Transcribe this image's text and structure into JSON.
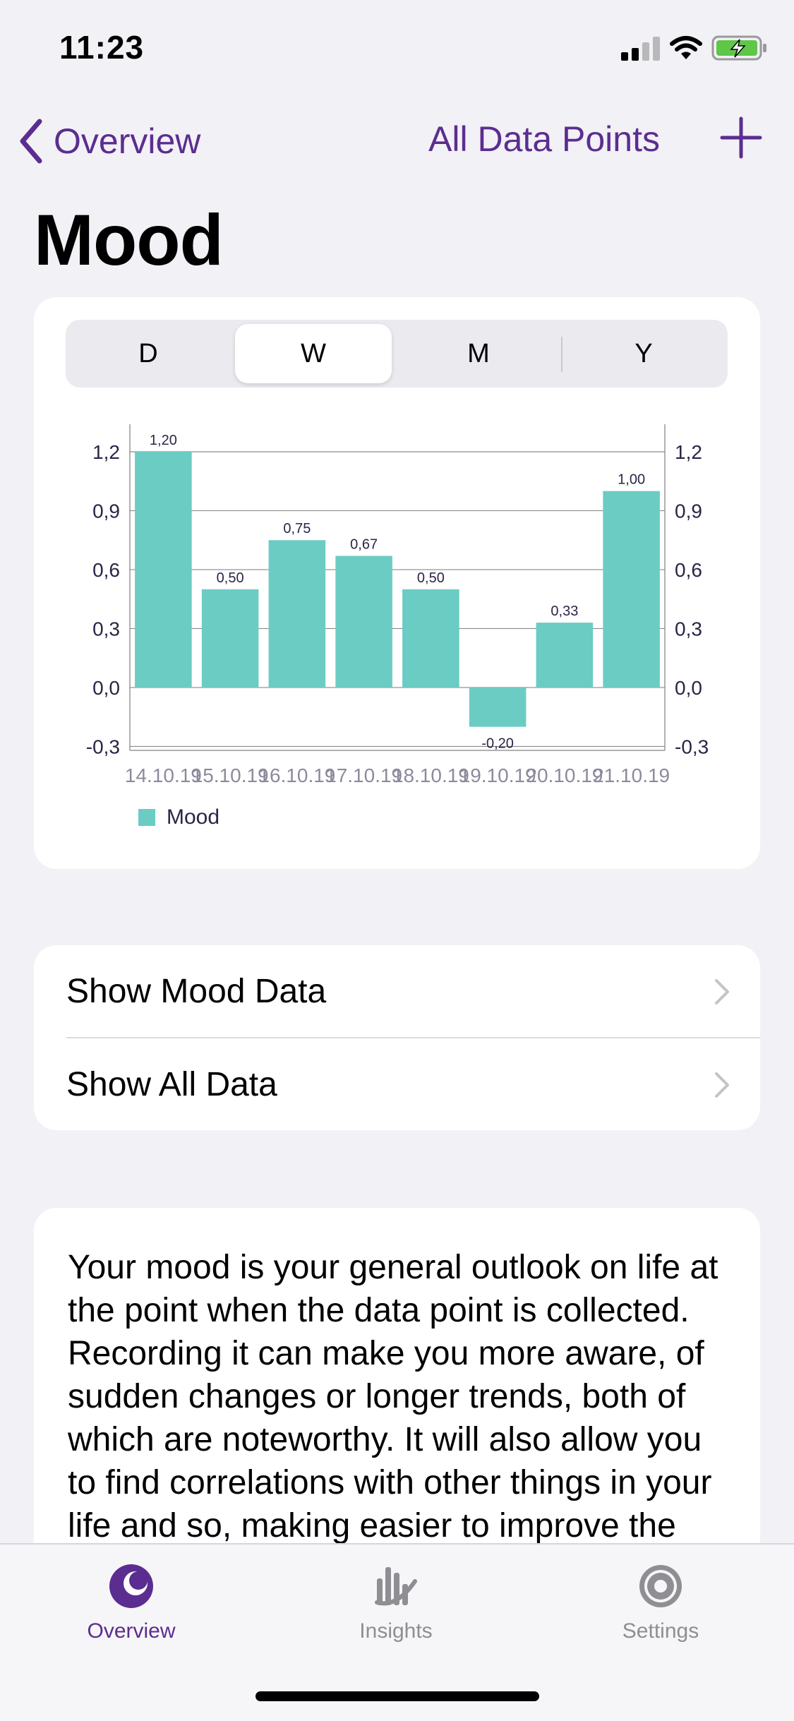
{
  "status_bar": {
    "time": "11:23"
  },
  "nav": {
    "back_label": "Overview",
    "right_label": "All Data Points",
    "add_icon": "plus-icon"
  },
  "page": {
    "title": "Mood"
  },
  "segments": {
    "items": [
      "D",
      "W",
      "M",
      "Y"
    ],
    "selected": "W"
  },
  "chart_data": {
    "type": "bar",
    "categories": [
      "14.10.19",
      "15.10.19",
      "16.10.19",
      "17.10.19",
      "18.10.19",
      "19.10.19",
      "20.10.19",
      "21.10.19"
    ],
    "series": [
      {
        "name": "Mood",
        "values": [
          1.2,
          0.5,
          0.75,
          0.67,
          0.5,
          -0.2,
          0.33,
          1.0
        ]
      }
    ],
    "value_labels": [
      "1,20",
      "0,50",
      "0,75",
      "0,67",
      "0,50",
      "-0,20",
      "0,33",
      "1,00"
    ],
    "yticks": [
      -0.3,
      0.0,
      0.3,
      0.6,
      0.9,
      1.2
    ],
    "ytick_labels": [
      "-0,3",
      "0,0",
      "0,3",
      "0,6",
      "0,9",
      "1,2"
    ],
    "ylim": [
      -0.32,
      1.34
    ],
    "dual_y_axis": true,
    "grid": true,
    "legend": "bottom-left",
    "colors": {
      "bar": "#6bccc3"
    }
  },
  "links": [
    {
      "label": "Show Mood Data"
    },
    {
      "label": "Show All Data"
    }
  ],
  "description": {
    "text": "Your mood is your general outlook on life at the point when the data point is collected. Recording it can make you more aware, of sudden changes or longer trends, both of which are noteworthy. It will also allow you to find correlations with other things in your life and so, making easier to improve the"
  },
  "tabbar": {
    "items": [
      {
        "label": "Overview",
        "icon": "overview-icon",
        "active": true
      },
      {
        "label": "Insights",
        "icon": "insights-icon",
        "active": false
      },
      {
        "label": "Settings",
        "icon": "gear-icon",
        "active": false
      }
    ]
  },
  "colors": {
    "accent": "#5b2d90",
    "background": "#f2f1f6"
  }
}
